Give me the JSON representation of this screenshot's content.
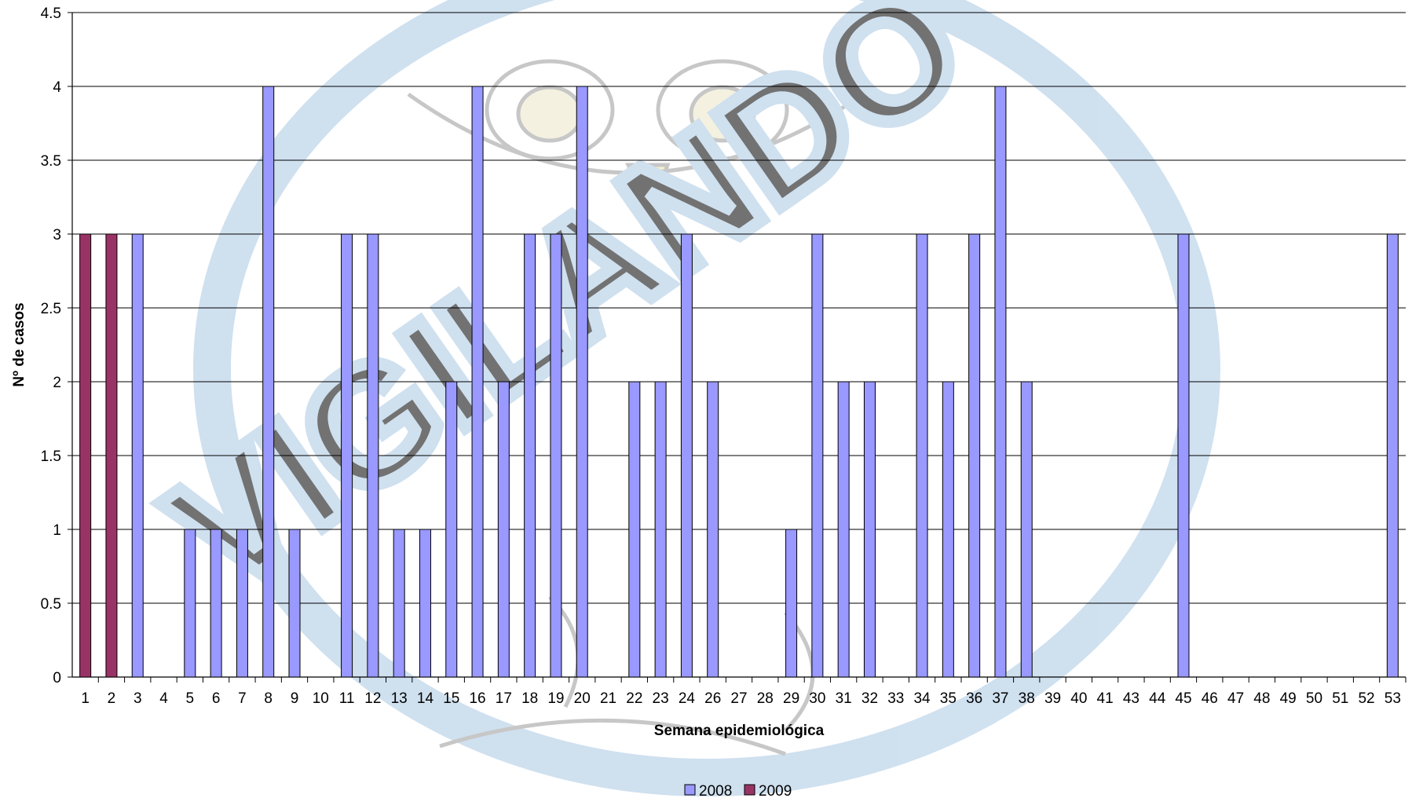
{
  "chart_data": {
    "type": "bar",
    "xlabel": "Semana epidemiológica",
    "ylabel": "Nº de casos",
    "ylim": [
      0,
      4.5
    ],
    "yticks": [
      "0",
      "0.5",
      "1",
      "1.5",
      "2",
      "2.5",
      "3",
      "3.5",
      "4",
      "4.5"
    ],
    "grid": true,
    "legend_position": "bottom-center",
    "categories": [
      "1",
      "2",
      "3",
      "4",
      "5",
      "6",
      "7",
      "8",
      "9",
      "10",
      "11",
      "12",
      "13",
      "14",
      "15",
      "16",
      "17",
      "18",
      "19",
      "20",
      "21",
      "22",
      "23",
      "24",
      "26",
      "27",
      "28",
      "29",
      "30",
      "31",
      "32",
      "33",
      "34",
      "35",
      "36",
      "37",
      "38",
      "39",
      "40",
      "41",
      "43",
      "44",
      "45",
      "46",
      "47",
      "48",
      "49",
      "50",
      "51",
      "52",
      "53"
    ],
    "series": [
      {
        "name": "2008",
        "color": "#9999ff",
        "values": [
          0,
          0,
          3,
          0,
          1,
          1,
          1,
          4,
          1,
          0,
          3,
          3,
          1,
          1,
          2,
          4,
          2,
          3,
          3,
          4,
          0,
          2,
          2,
          3,
          2,
          0,
          0,
          1,
          3,
          2,
          2,
          0,
          3,
          2,
          3,
          4,
          2,
          0,
          0,
          0,
          0,
          0,
          3,
          0,
          0,
          0,
          0,
          0,
          0,
          0,
          3
        ]
      },
      {
        "name": "2009",
        "color": "#993366",
        "values": [
          3,
          3,
          0,
          0,
          0,
          0,
          0,
          0,
          0,
          0,
          0,
          0,
          0,
          0,
          0,
          0,
          0,
          0,
          0,
          0,
          0,
          0,
          0,
          0,
          0,
          0,
          0,
          0,
          0,
          0,
          0,
          0,
          0,
          0,
          0,
          0,
          0,
          0,
          0,
          0,
          0,
          0,
          0,
          0,
          0,
          0,
          0,
          0,
          0,
          0,
          0
        ]
      }
    ]
  },
  "watermark": {
    "text": "VIGILANDO",
    "color": "#a9c8e3"
  }
}
